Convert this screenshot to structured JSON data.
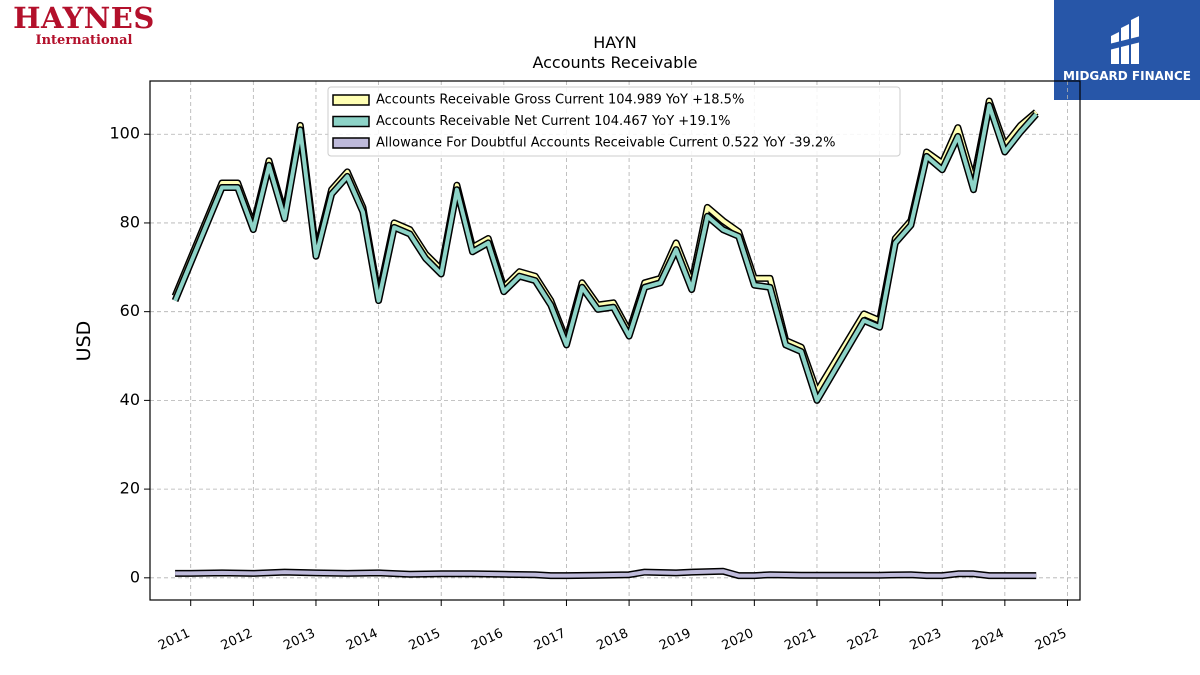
{
  "logos": {
    "left_main": "HAYNES",
    "left_sub": "International",
    "right_name": "MIDGARD FINANCE"
  },
  "chart_data": {
    "type": "line",
    "title": "HAYN",
    "subtitle": "Accounts Receivable",
    "ylabel": "USD",
    "xlabel": "",
    "ylim": [
      -5,
      112
    ],
    "xlim": [
      2010.35,
      2025.2
    ],
    "yticks": [
      0,
      20,
      40,
      60,
      80,
      100
    ],
    "xticks": [
      "2011",
      "2012",
      "2013",
      "2014",
      "2015",
      "2016",
      "2017",
      "2018",
      "2019",
      "2020",
      "2021",
      "2022",
      "2023",
      "2024",
      "2025"
    ],
    "grid": true,
    "legend_position": "top-center",
    "series": [
      {
        "name": "Accounts Receivable Gross Current",
        "legend_label": "Accounts Receivable Gross Current  104.989 YoY +18.5%",
        "color": "#ffffb3",
        "points": [
          [
            2010.75,
            63.5
          ],
          [
            2011.5,
            89.0
          ],
          [
            2011.75,
            89.0
          ],
          [
            2012.0,
            79.5
          ],
          [
            2012.25,
            94.0
          ],
          [
            2012.5,
            82.0
          ],
          [
            2012.75,
            102.0
          ],
          [
            2013.0,
            73.5
          ],
          [
            2013.25,
            87.5
          ],
          [
            2013.5,
            91.5
          ],
          [
            2013.75,
            83.5
          ],
          [
            2014.0,
            63.5
          ],
          [
            2014.25,
            80.0
          ],
          [
            2014.5,
            78.5
          ],
          [
            2014.75,
            73.0
          ],
          [
            2015.0,
            69.5
          ],
          [
            2015.25,
            88.5
          ],
          [
            2015.5,
            74.5
          ],
          [
            2015.75,
            76.5
          ],
          [
            2016.0,
            65.5
          ],
          [
            2016.25,
            69.0
          ],
          [
            2016.5,
            68.0
          ],
          [
            2016.75,
            62.5
          ],
          [
            2017.0,
            53.5
          ],
          [
            2017.25,
            66.5
          ],
          [
            2017.5,
            61.5
          ],
          [
            2017.75,
            62.0
          ],
          [
            2018.0,
            55.5
          ],
          [
            2018.25,
            66.5
          ],
          [
            2018.5,
            67.5
          ],
          [
            2018.75,
            75.5
          ],
          [
            2019.0,
            66.5
          ],
          [
            2019.25,
            83.5
          ],
          [
            2019.5,
            80.5
          ],
          [
            2019.75,
            78.0
          ],
          [
            2020.0,
            67.5
          ],
          [
            2020.25,
            67.5
          ],
          [
            2020.5,
            53.5
          ],
          [
            2020.75,
            52.0
          ],
          [
            2021.0,
            42.0
          ],
          [
            2021.75,
            59.5
          ],
          [
            2022.0,
            58.0
          ],
          [
            2022.25,
            76.5
          ],
          [
            2022.5,
            80.5
          ],
          [
            2022.75,
            96.0
          ],
          [
            2023.0,
            93.5
          ],
          [
            2023.25,
            101.5
          ],
          [
            2023.5,
            89.5
          ],
          [
            2023.75,
            107.5
          ],
          [
            2024.0,
            97.5
          ],
          [
            2024.25,
            102.0
          ],
          [
            2024.5,
            105.0
          ]
        ]
      },
      {
        "name": "Accounts Receivable Net Current",
        "legend_label": "Accounts Receivable Net Current  104.467 YoY +19.1%",
        "color": "#8dd3c7",
        "points": [
          [
            2010.75,
            62.5
          ],
          [
            2011.5,
            88.0
          ],
          [
            2011.75,
            88.0
          ],
          [
            2012.0,
            78.5
          ],
          [
            2012.25,
            93.0
          ],
          [
            2012.5,
            81.0
          ],
          [
            2012.75,
            101.0
          ],
          [
            2013.0,
            72.5
          ],
          [
            2013.25,
            86.5
          ],
          [
            2013.5,
            90.5
          ],
          [
            2013.75,
            82.5
          ],
          [
            2014.0,
            62.5
          ],
          [
            2014.25,
            79.0
          ],
          [
            2014.5,
            77.5
          ],
          [
            2014.75,
            72.0
          ],
          [
            2015.0,
            68.5
          ],
          [
            2015.25,
            87.5
          ],
          [
            2015.5,
            73.5
          ],
          [
            2015.75,
            75.5
          ],
          [
            2016.0,
            64.5
          ],
          [
            2016.25,
            68.0
          ],
          [
            2016.5,
            67.0
          ],
          [
            2016.75,
            61.5
          ],
          [
            2017.0,
            52.5
          ],
          [
            2017.25,
            65.5
          ],
          [
            2017.5,
            60.5
          ],
          [
            2017.75,
            61.0
          ],
          [
            2018.0,
            54.5
          ],
          [
            2018.25,
            65.5
          ],
          [
            2018.5,
            66.5
          ],
          [
            2018.75,
            74.0
          ],
          [
            2019.0,
            65.0
          ],
          [
            2019.25,
            81.5
          ],
          [
            2019.5,
            78.5
          ],
          [
            2019.75,
            77.0
          ],
          [
            2020.0,
            66.0
          ],
          [
            2020.25,
            65.5
          ],
          [
            2020.5,
            52.5
          ],
          [
            2020.75,
            51.0
          ],
          [
            2021.0,
            40.0
          ],
          [
            2021.75,
            58.0
          ],
          [
            2022.0,
            56.5
          ],
          [
            2022.25,
            75.5
          ],
          [
            2022.5,
            79.5
          ],
          [
            2022.75,
            95.0
          ],
          [
            2023.0,
            92.0
          ],
          [
            2023.25,
            99.5
          ],
          [
            2023.5,
            87.5
          ],
          [
            2023.75,
            106.5
          ],
          [
            2024.0,
            96.0
          ],
          [
            2024.25,
            100.5
          ],
          [
            2024.5,
            104.5
          ]
        ]
      },
      {
        "name": "Allowance For Doubtful Accounts Receivable Current",
        "legend_label": "Allowance For Doubtful Accounts Receivable Current  0.522 YoY -39.2%",
        "color": "#bebada",
        "points": [
          [
            2010.75,
            1.0
          ],
          [
            2011.0,
            1.0
          ],
          [
            2011.5,
            1.1
          ],
          [
            2012.0,
            1.0
          ],
          [
            2012.5,
            1.3
          ],
          [
            2013.0,
            1.1
          ],
          [
            2013.5,
            1.0
          ],
          [
            2014.0,
            1.1
          ],
          [
            2014.5,
            0.8
          ],
          [
            2015.0,
            0.9
          ],
          [
            2015.5,
            0.9
          ],
          [
            2016.0,
            0.8
          ],
          [
            2016.5,
            0.7
          ],
          [
            2016.75,
            0.5
          ],
          [
            2017.0,
            0.5
          ],
          [
            2017.5,
            0.6
          ],
          [
            2018.0,
            0.7
          ],
          [
            2018.25,
            1.3
          ],
          [
            2018.75,
            1.1
          ],
          [
            2019.0,
            1.3
          ],
          [
            2019.5,
            1.5
          ],
          [
            2019.75,
            0.5
          ],
          [
            2020.0,
            0.5
          ],
          [
            2020.25,
            0.7
          ],
          [
            2020.75,
            0.6
          ],
          [
            2021.0,
            0.6
          ],
          [
            2021.5,
            0.6
          ],
          [
            2022.0,
            0.6
          ],
          [
            2022.5,
            0.7
          ],
          [
            2022.75,
            0.5
          ],
          [
            2023.0,
            0.5
          ],
          [
            2023.25,
            0.9
          ],
          [
            2023.5,
            0.9
          ],
          [
            2023.75,
            0.5
          ],
          [
            2024.0,
            0.5
          ],
          [
            2024.5,
            0.5
          ]
        ]
      }
    ]
  }
}
